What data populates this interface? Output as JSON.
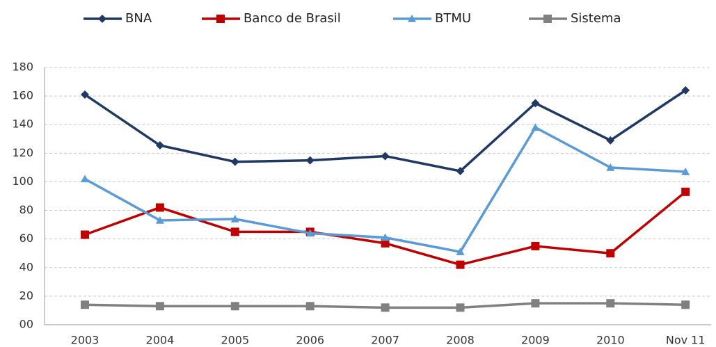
{
  "chart_data": {
    "type": "line",
    "categories": [
      "2003",
      "2004",
      "2005",
      "2006",
      "2007",
      "2008",
      "2009",
      "2010",
      "Nov 11"
    ],
    "series": [
      {
        "name": "BNA",
        "color": "#1f3864",
        "marker": "diamond",
        "values": [
          161,
          125.5,
          114,
          115,
          118,
          107.5,
          155,
          129,
          164
        ]
      },
      {
        "name": "Banco de Brasil",
        "color": "#c00000",
        "marker": "square",
        "values": [
          63,
          82,
          65,
          65,
          57,
          42,
          55,
          50,
          93
        ]
      },
      {
        "name": "BTMU",
        "color": "#5b9bd5",
        "marker": "triangle",
        "values": [
          102,
          73,
          74,
          64,
          61,
          51,
          138,
          110,
          107
        ]
      },
      {
        "name": "Sistema",
        "color": "#808080",
        "marker": "square",
        "values": [
          14,
          13,
          13,
          13,
          12,
          12,
          15,
          15,
          14
        ]
      }
    ],
    "ylim": [
      0,
      180
    ],
    "yticks": [
      {
        "value": 0,
        "label": "00"
      },
      20,
      40,
      60,
      80,
      100,
      120,
      140,
      160,
      180
    ],
    "grid": true,
    "legend": "top"
  }
}
